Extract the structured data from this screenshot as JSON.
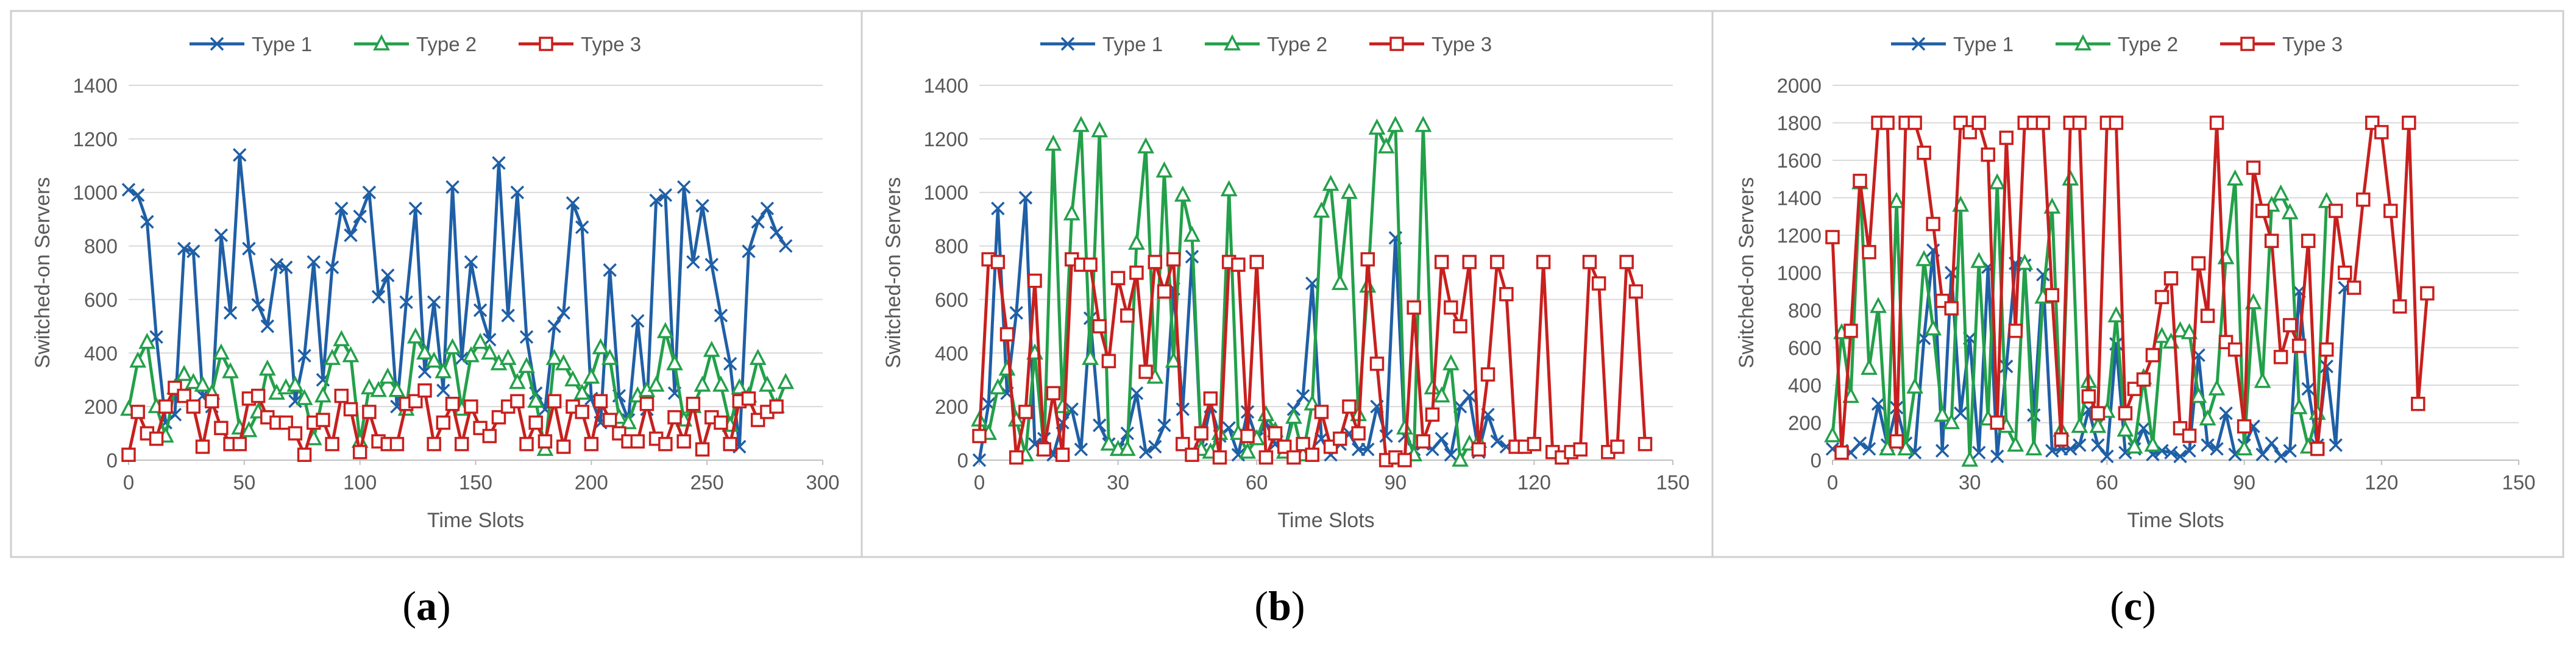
{
  "colors": {
    "type1": "#1f5fa6",
    "type2": "#23a04a",
    "type3": "#c8201e",
    "grid": "#d9d9d9",
    "axis_text": "#595959",
    "border": "#cfcfcf"
  },
  "chart_data": [
    {
      "type": "line",
      "panel_label": "a",
      "xlabel": "Time Slots",
      "ylabel": "Switched-on Servers",
      "xlim": [
        0,
        300
      ],
      "xticks": [
        0,
        50,
        100,
        150,
        200,
        250,
        300
      ],
      "ylim": [
        0,
        1400
      ],
      "yticks": [
        0,
        200,
        400,
        600,
        800,
        1000,
        1200,
        1400
      ],
      "legend": [
        "Type 1",
        "Type 2",
        "Type 3"
      ],
      "x_step": 4,
      "series": [
        {
          "name": "Type 1",
          "marker": "x",
          "values": [
            1010,
            990,
            890,
            460,
            140,
            170,
            790,
            780,
            240,
            200,
            840,
            550,
            1140,
            790,
            580,
            500,
            730,
            720,
            220,
            390,
            740,
            300,
            720,
            940,
            840,
            910,
            1000,
            610,
            690,
            200,
            590,
            940,
            330,
            590,
            260,
            1020,
            380,
            740,
            560,
            450,
            1110,
            540,
            1000,
            460,
            250,
            190,
            500,
            550,
            960,
            870,
            230,
            140,
            710,
            240,
            150,
            520,
            190,
            970,
            990,
            250,
            1020,
            740,
            950,
            730,
            540,
            360,
            50,
            780,
            890,
            940,
            850,
            800
          ]
        },
        {
          "name": "Type 2",
          "marker": "triangle",
          "values": [
            190,
            370,
            440,
            200,
            90,
            270,
            320,
            290,
            280,
            250,
            400,
            330,
            120,
            110,
            180,
            340,
            250,
            270,
            280,
            230,
            80,
            240,
            380,
            450,
            390,
            70,
            270,
            260,
            310,
            260,
            190,
            460,
            400,
            370,
            330,
            420,
            190,
            390,
            440,
            400,
            360,
            380,
            290,
            350,
            220,
            40,
            380,
            360,
            300,
            250,
            310,
            420,
            380,
            160,
            140,
            240,
            260,
            280,
            480,
            360,
            150,
            200,
            280,
            410,
            280,
            130,
            270,
            240,
            380,
            280,
            200,
            290
          ]
        },
        {
          "name": "Type 3",
          "marker": "square",
          "values": [
            20,
            180,
            100,
            80,
            200,
            270,
            240,
            200,
            50,
            220,
            120,
            60,
            60,
            230,
            240,
            160,
            140,
            140,
            100,
            20,
            140,
            150,
            60,
            240,
            190,
            30,
            180,
            70,
            60,
            60,
            210,
            220,
            260,
            60,
            140,
            210,
            60,
            200,
            120,
            90,
            160,
            200,
            220,
            60,
            140,
            70,
            220,
            50,
            200,
            180,
            60,
            220,
            150,
            100,
            70,
            70,
            210,
            80,
            60,
            160,
            70,
            210,
            40,
            160,
            140,
            60,
            220,
            230,
            150,
            180,
            200
          ]
        }
      ]
    },
    {
      "type": "line",
      "panel_label": "b",
      "xlabel": "Time Slots",
      "ylabel": "Switched-on Servers",
      "xlim": [
        0,
        150
      ],
      "xticks": [
        0,
        30,
        60,
        90,
        120,
        150
      ],
      "ylim": [
        0,
        1400
      ],
      "yticks": [
        0,
        200,
        400,
        600,
        800,
        1000,
        1200,
        1400
      ],
      "legend": [
        "Type 1",
        "Type 2",
        "Type 3"
      ],
      "x_step": 2,
      "series": [
        {
          "name": "Type 1",
          "marker": "x",
          "values": [
            0,
            210,
            940,
            250,
            550,
            980,
            60,
            80,
            20,
            140,
            190,
            40,
            530,
            130,
            60,
            40,
            100,
            250,
            30,
            50,
            130,
            640,
            190,
            760,
            40,
            200,
            90,
            120,
            20,
            180,
            80,
            140,
            60,
            30,
            190,
            240,
            660,
            80,
            20,
            60,
            100,
            40,
            40,
            200,
            90,
            830,
            90,
            40,
            60,
            40,
            80,
            20,
            200,
            240,
            30,
            170,
            70,
            50
          ]
        },
        {
          "name": "Type 2",
          "marker": "triangle",
          "values": [
            150,
            100,
            270,
            340,
            150,
            20,
            400,
            40,
            1180,
            200,
            920,
            1250,
            380,
            1230,
            60,
            40,
            40,
            810,
            1170,
            310,
            1080,
            370,
            990,
            840,
            40,
            30,
            100,
            1010,
            100,
            30,
            80,
            170,
            110,
            30,
            160,
            20,
            210,
            930,
            1030,
            660,
            1000,
            170,
            650,
            1240,
            1170,
            1250,
            120,
            20,
            1250,
            270,
            240,
            360,
            0,
            60,
            70
          ]
        },
        {
          "name": "Type 3",
          "marker": "square",
          "values": [
            90,
            750,
            740,
            470,
            10,
            180,
            670,
            40,
            250,
            20,
            750,
            730,
            730,
            500,
            370,
            680,
            540,
            700,
            330,
            740,
            630,
            750,
            60,
            20,
            100,
            230,
            10,
            740,
            730,
            90,
            740,
            10,
            100,
            50,
            10,
            60,
            20,
            180,
            50,
            80,
            200,
            100,
            750,
            360,
            0,
            10,
            0,
            570,
            70,
            170,
            740,
            570,
            500,
            740,
            40,
            320,
            740,
            620,
            50,
            50,
            60,
            740,
            30,
            10,
            30,
            40,
            740,
            660,
            30,
            50,
            740,
            630,
            60
          ]
        }
      ]
    },
    {
      "type": "line",
      "panel_label": "c",
      "xlabel": "Time Slots",
      "ylabel": "Switched-on Servers",
      "xlim": [
        0,
        150
      ],
      "xticks": [
        0,
        30,
        60,
        90,
        120,
        150
      ],
      "ylim": [
        0,
        2000
      ],
      "yticks": [
        0,
        200,
        400,
        600,
        800,
        1000,
        1200,
        1400,
        1600,
        1800,
        2000
      ],
      "legend": [
        "Type 1",
        "Type 2",
        "Type 3"
      ],
      "x_step": 2,
      "series": [
        {
          "name": "Type 1",
          "marker": "x",
          "values": [
            60,
            50,
            40,
            90,
            60,
            300,
            80,
            280,
            90,
            40,
            650,
            1120,
            50,
            1000,
            250,
            650,
            40,
            1030,
            20,
            500,
            1050,
            1040,
            240,
            990,
            50,
            60,
            60,
            80,
            270,
            80,
            20,
            620,
            40,
            60,
            170,
            30,
            50,
            40,
            20,
            50,
            560,
            80,
            60,
            250,
            30,
            80,
            180,
            30,
            90,
            20,
            50,
            900,
            380,
            80,
            500,
            80,
            920
          ]
        },
        {
          "name": "Type 2",
          "marker": "triangle",
          "values": [
            130,
            680,
            340,
            1480,
            490,
            820,
            60,
            1380,
            60,
            390,
            1070,
            700,
            240,
            200,
            1360,
            0,
            1060,
            220,
            1480,
            180,
            80,
            1050,
            60,
            870,
            1350,
            160,
            1500,
            180,
            420,
            180,
            260,
            770,
            160,
            70,
            440,
            80,
            660,
            630,
            690,
            680,
            340,
            220,
            380,
            1080,
            1500,
            60,
            840,
            420,
            1360,
            1420,
            1320,
            280,
            70,
            250,
            1380
          ]
        },
        {
          "name": "Type 3",
          "marker": "square",
          "values": [
            1190,
            40,
            690,
            1490,
            1110,
            1800,
            1800,
            100,
            1800,
            1800,
            1640,
            1260,
            850,
            810,
            1800,
            1750,
            1800,
            1630,
            200,
            1720,
            690,
            1800,
            1800,
            1800,
            880,
            110,
            1800,
            1800,
            340,
            250,
            1800,
            1800,
            250,
            380,
            430,
            560,
            870,
            970,
            170,
            130,
            1050,
            770,
            1800,
            630,
            590,
            180,
            1560,
            1330,
            1170,
            550,
            720,
            610,
            1170,
            60,
            590,
            1330,
            1000,
            920,
            1390,
            1800,
            1750,
            1330,
            820,
            1800,
            300,
            890
          ]
        }
      ]
    }
  ]
}
